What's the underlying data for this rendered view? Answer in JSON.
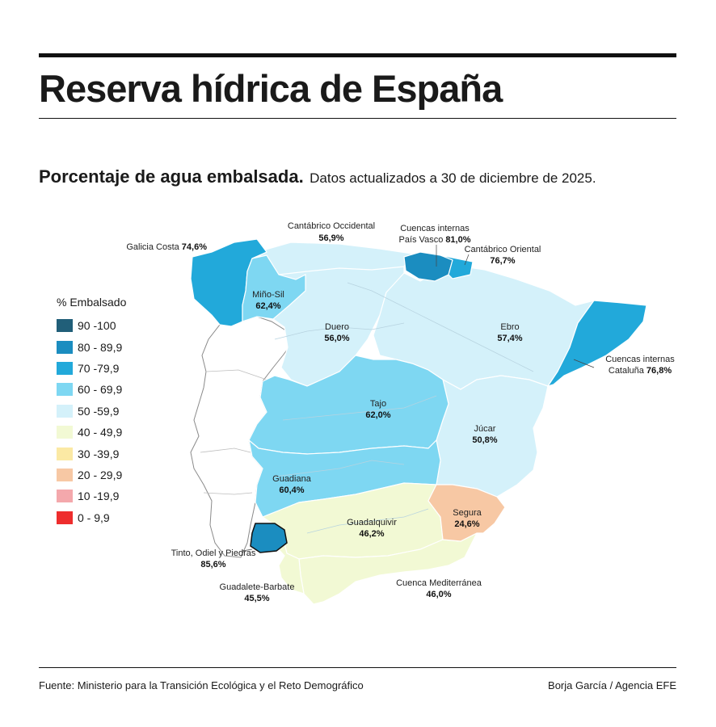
{
  "header": {
    "title": "Reserva hídrica de España",
    "subtitle_lead": "Porcentaje de agua embalsada.",
    "subtitle_rest": "Datos actualizados a 30 de diciembre de 2025."
  },
  "legend": {
    "title": "% Embalsado",
    "items": [
      {
        "label": "90 -100",
        "color": "#215f79"
      },
      {
        "label": "80 - 89,9",
        "color": "#1b8dc0"
      },
      {
        "label": "70 -79,9",
        "color": "#22a9da"
      },
      {
        "label": "60 - 69,9",
        "color": "#7ed7f2"
      },
      {
        "label": "50 -59,9",
        "color": "#d4f1fa"
      },
      {
        "label": "40 - 49,9",
        "color": "#f2f9d4"
      },
      {
        "label": "30 -39,9",
        "color": "#fbe9a4"
      },
      {
        "label": "20 - 29,9",
        "color": "#f7c8a4"
      },
      {
        "label": "10 -19,9",
        "color": "#f4a8ac"
      },
      {
        "label": "0 - 9,9",
        "color": "#ee2d2d"
      }
    ]
  },
  "basins": [
    {
      "id": "galicia-costa",
      "name": "Galicia Costa",
      "value": "74,6%",
      "fill": "#22a9da"
    },
    {
      "id": "mino-sil",
      "name": "Miño-Sil",
      "value": "62,4%",
      "fill": "#7ed7f2"
    },
    {
      "id": "cantabrico-occidental",
      "name": "Cantábrico Occidental",
      "value": "56,9%",
      "fill": "#d4f1fa"
    },
    {
      "id": "pais-vasco",
      "name_line1": "Cuencas internas",
      "name_line2": "País Vasco",
      "value": "81,0%",
      "fill": "#1b8dc0"
    },
    {
      "id": "cantabrico-oriental",
      "name": "Cantábrico Oriental",
      "value": "76,7%",
      "fill": "#22a9da"
    },
    {
      "id": "duero",
      "name": "Duero",
      "value": "56,0%",
      "fill": "#d4f1fa"
    },
    {
      "id": "ebro",
      "name": "Ebro",
      "value": "57,4%",
      "fill": "#d4f1fa"
    },
    {
      "id": "cataluna",
      "name_line1": "Cuencas internas",
      "name_line2": "Cataluña",
      "value": "76,8%",
      "fill": "#22a9da"
    },
    {
      "id": "tajo",
      "name": "Tajo",
      "value": "62,0%",
      "fill": "#7ed7f2"
    },
    {
      "id": "jucar",
      "name": "Júcar",
      "value": "50,8%",
      "fill": "#d4f1fa"
    },
    {
      "id": "guadiana",
      "name": "Guadiana",
      "value": "60,4%",
      "fill": "#7ed7f2"
    },
    {
      "id": "segura",
      "name": "Segura",
      "value": "24,6%",
      "fill": "#f7c8a4"
    },
    {
      "id": "guadalquivir",
      "name": "Guadalquivir",
      "value": "46,2%",
      "fill": "#f2f9d4"
    },
    {
      "id": "tinto-odiel",
      "name": "Tinto, Odiel y Piedras",
      "value": "85,6%",
      "fill": "#1b8dc0"
    },
    {
      "id": "guadalete-barbate",
      "name": "Guadalete-Barbate",
      "value": "45,5%",
      "fill": "#f2f9d4"
    },
    {
      "id": "mediterranea",
      "name": "Cuenca Mediterránea",
      "value": "46,0%",
      "fill": "#f2f9d4"
    }
  ],
  "footer": {
    "source": "Fuente: Ministerio para la Transición Ecológica y el Reto Demográfico",
    "credit": "Borja García / Agencia EFE"
  }
}
